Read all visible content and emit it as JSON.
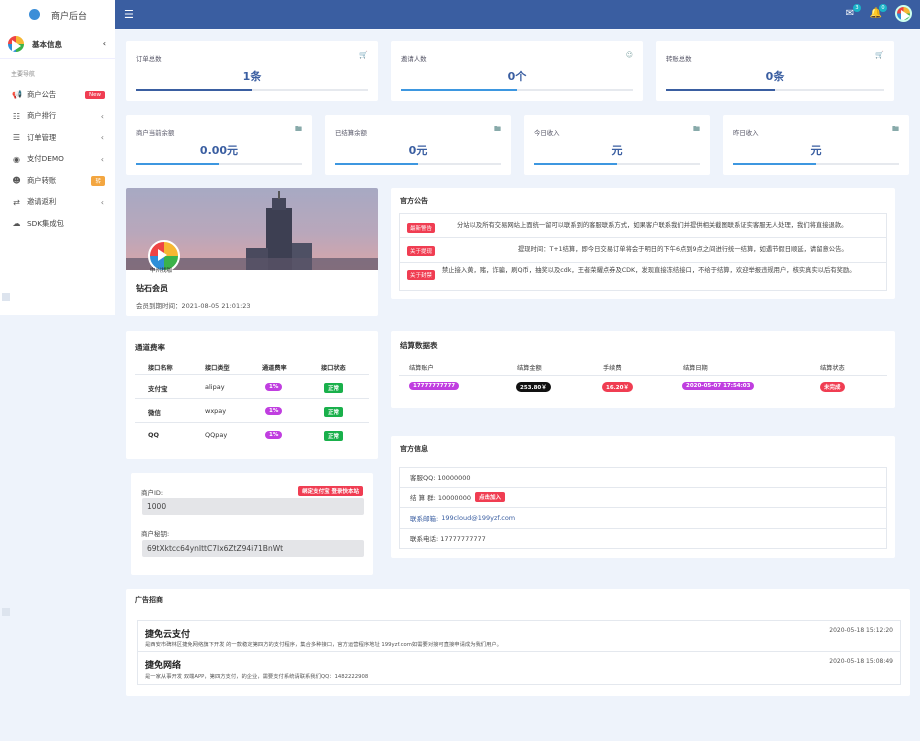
{
  "brand": {
    "title": "商户后台"
  },
  "header": {
    "notify_count": "3",
    "bell_count": "0"
  },
  "sidebar": {
    "user_label": "基本信息",
    "section": "主要导航",
    "items": [
      {
        "label": "商户公告",
        "icon": "megaphone-icon",
        "tag": "New"
      },
      {
        "label": "商户排行",
        "icon": "ranking-icon"
      },
      {
        "label": "订单管理",
        "icon": "list-icon"
      },
      {
        "label": "支付DEMO",
        "icon": "coin-icon"
      },
      {
        "label": "商户转账",
        "icon": "users-icon",
        "tag": "转"
      },
      {
        "label": "邀请返利",
        "icon": "share-icon"
      },
      {
        "label": "SDK集成包",
        "icon": "cloud-icon"
      }
    ]
  },
  "stats_row1": [
    {
      "label": "订单总数",
      "value": "1条",
      "icon": "cart-icon",
      "progress": 0.5
    },
    {
      "label": "邀请人数",
      "value": "0个",
      "icon": "user-icon",
      "progress": 0.5
    },
    {
      "label": "转账总数",
      "value": "0条",
      "icon": "cart-icon",
      "progress": 0.5
    }
  ],
  "stats_row2": [
    {
      "label": "商户当前余额",
      "value": "0.00元",
      "icon": "folder-icon",
      "progress": 0.5
    },
    {
      "label": "已结算余额",
      "value": "0元",
      "icon": "folder-icon",
      "progress": 0.5
    },
    {
      "label": "今日收入",
      "value": "元",
      "icon": "folder-icon",
      "progress": 0.5
    },
    {
      "label": "昨日收入",
      "value": "元",
      "icon": "folder-icon",
      "progress": 0.5
    }
  ],
  "profile": {
    "badge_text": "中州找咖",
    "name": "钻石会员",
    "expire": "会员到期时间：2021-08-05 21:01:23"
  },
  "announcements": {
    "title": "官方公告",
    "items": [
      {
        "tag": "最新警告",
        "text": "分站以及所有交易网站上面统一留可以联系到的客服联系方式，如果客户联系我们并提供相关截图联系证实客服无人处理，我们将直接退款。"
      },
      {
        "tag": "关于提现",
        "text": "提现时间：T+1结算，即今日交易订单将会于明日的下午6点到9点之间进行统一结算，如遇节假日顺延，请留意公告。"
      },
      {
        "tag": "关于封禁",
        "text": "禁止接入黄，赌，诈骗，刷Q币，抽奖以及cdk，王者荣耀点券及CDK，发现直接冻结接口，不给于结算，欢迎举报违规用户，核实真实以后有奖励。"
      }
    ]
  },
  "channel": {
    "title": "通道费率",
    "headers": [
      "接口名称",
      "接口类型",
      "通道费率",
      "接口状态"
    ],
    "rows": [
      {
        "name": "支付宝",
        "type": "alipay",
        "rate": "1%",
        "status": "正常"
      },
      {
        "name": "微信",
        "type": "wxpay",
        "rate": "1%",
        "status": "正常"
      },
      {
        "name": "QQ",
        "type": "QQpay",
        "rate": "1%",
        "status": "正常"
      }
    ]
  },
  "settlement": {
    "title": "结算数据表",
    "headers": [
      "结算账户",
      "结算金额",
      "手续费",
      "结算日期",
      "结算状态"
    ],
    "rows": [
      {
        "account": "17777777777",
        "amount": "253.80￥",
        "fee": "16.20￥",
        "date": "2020-05-07 17:54:03",
        "status": "未完成"
      }
    ]
  },
  "merchant": {
    "id_label": "商户ID:",
    "id_value": "1000",
    "bind_btn": "绑定支付宝 登录快本站",
    "key_label": "商户秘钥:",
    "key_value": "69tXktcc64ynIttC7Ix6ZtZ94i71BnWt"
  },
  "official": {
    "title": "官方信息",
    "qq": "客服QQ: 10000000",
    "group": "结 算 群: 10000000",
    "join_btn": "点击加入",
    "email_label": "联系邮箱:",
    "email": "199cloud@199yzf.com",
    "phone": "联系电话: 17777777777"
  },
  "ads": {
    "title": "广告招商",
    "items": [
      {
        "title": "捷免云支付",
        "date": "2020-05-18 15:12:20",
        "desc": "是西安市碑林区捷免网络旗下开发 的一款稳定第四方的支付程序，集合多种接口，官方运营程序地址 199yzf.com如需要对接可直接申请成为我们用户。"
      },
      {
        "title": "捷免网络",
        "date": "2020-05-18 15:08:49",
        "desc": "是一家从事开发 双端APP，第四方支付，的企业，需要支付系统请联系我们QQ：1482222908"
      }
    ]
  },
  "colors": {
    "primary": "#3a5ea1",
    "accent": "#3d97e0",
    "danger": "#f03d52",
    "purple": "#c03ee0",
    "success": "#19b04b"
  }
}
